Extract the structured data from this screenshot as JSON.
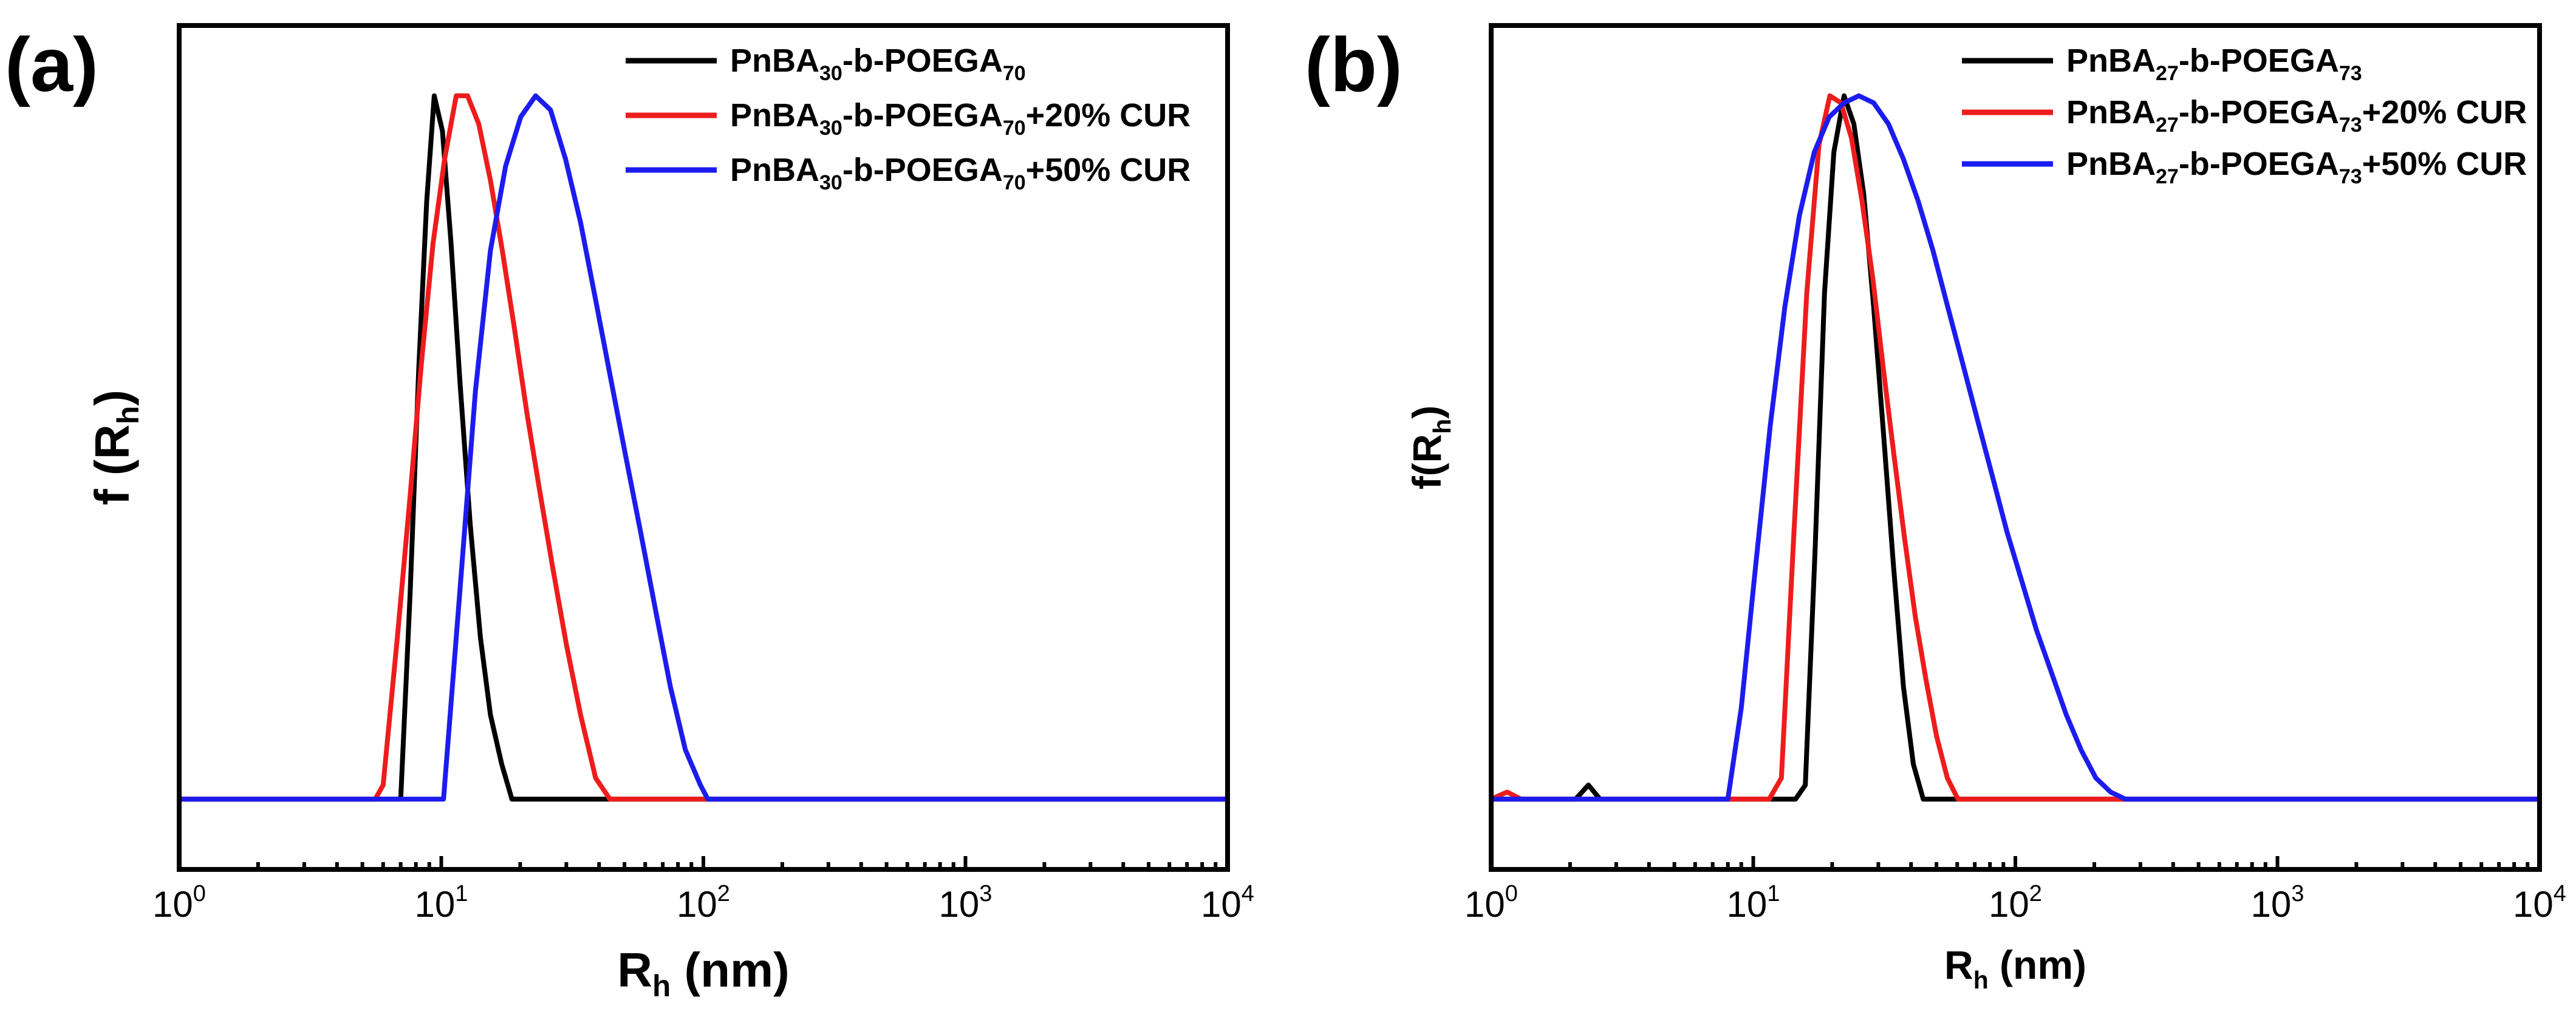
{
  "chart_data": [
    {
      "type": "line",
      "panel_label": "(a)",
      "xscale": "log",
      "xlim": [
        1,
        10000
      ],
      "ylim": [
        -0.1,
        1.1
      ],
      "x_ticks": [
        {
          "base": "10",
          "exp": "0",
          "value": 1
        },
        {
          "base": "10",
          "exp": "1",
          "value": 10
        },
        {
          "base": "10",
          "exp": "2",
          "value": 100
        },
        {
          "base": "10",
          "exp": "3",
          "value": 1000
        },
        {
          "base": "10",
          "exp": "4",
          "value": 10000
        }
      ],
      "xlabel": {
        "main": "R",
        "sub": "h",
        "tail": " (nm)"
      },
      "ylabel": {
        "main": "f (R",
        "sub": "h",
        "tail": ")"
      },
      "legend_position": "top-right",
      "series": [
        {
          "name": "PnBA30-b-POEGA70",
          "label_parts": [
            [
              "PnBA",
              false
            ],
            [
              "30",
              true
            ],
            [
              "-b-POEGA",
              false
            ],
            [
              "70",
              true
            ]
          ],
          "color": "#000000",
          "x": [
            1,
            7,
            7.6,
            8.2,
            8.8,
            9.4,
            10.1,
            10.9,
            11.8,
            12.9,
            14.1,
            15.4,
            17,
            18.6,
            20,
            10000
          ],
          "y": [
            0,
            0,
            0.29,
            0.61,
            0.85,
            1.0,
            0.95,
            0.79,
            0.59,
            0.39,
            0.23,
            0.12,
            0.05,
            0.0,
            0,
            0
          ]
        },
        {
          "name": "PnBA30-b-POEGA70+20% CUR",
          "label_parts": [
            [
              "PnBA",
              false
            ],
            [
              "30",
              true
            ],
            [
              "-b-POEGA",
              false
            ],
            [
              "70",
              true
            ],
            [
              "+20% CUR",
              false
            ]
          ],
          "color": "#ee1c1c",
          "x": [
            1,
            5.6,
            6,
            6.8,
            7.6,
            8.4,
            9.3,
            10.3,
            11.4,
            12.6,
            13.9,
            15.4,
            17.1,
            19,
            21.2,
            23.7,
            26.6,
            30,
            34,
            38.8,
            44,
            10000
          ],
          "y": [
            0,
            0,
            0.02,
            0.23,
            0.43,
            0.62,
            0.79,
            0.91,
            1.0,
            1.0,
            0.96,
            0.88,
            0.78,
            0.67,
            0.55,
            0.44,
            0.33,
            0.22,
            0.12,
            0.03,
            0,
            0
          ]
        },
        {
          "name": "PnBA30-b-POEGA70+50% CUR",
          "label_parts": [
            [
              "PnBA",
              false
            ],
            [
              "30",
              true
            ],
            [
              "-b-POEGA",
              false
            ],
            [
              "70",
              true
            ],
            [
              "+50% CUR",
              false
            ]
          ],
          "color": "#1c1cee",
          "x": [
            1,
            10.2,
            11.8,
            13.5,
            15.4,
            17.6,
            20.1,
            22.9,
            26.1,
            29.8,
            34,
            38.8,
            44.2,
            50.4,
            57.6,
            65.6,
            74.8,
            85.4,
            97.4,
            104,
            10000
          ],
          "y": [
            0,
            0,
            0.3,
            0.58,
            0.78,
            0.9,
            0.97,
            1.0,
            0.98,
            0.91,
            0.82,
            0.71,
            0.6,
            0.49,
            0.38,
            0.27,
            0.16,
            0.07,
            0.02,
            0,
            0
          ]
        }
      ]
    },
    {
      "type": "line",
      "panel_label": "(b)",
      "xscale": "log",
      "xlim": [
        1,
        10000
      ],
      "ylim": [
        -0.1,
        1.1
      ],
      "x_ticks": [
        {
          "base": "10",
          "exp": "0",
          "value": 1
        },
        {
          "base": "10",
          "exp": "1",
          "value": 10
        },
        {
          "base": "10",
          "exp": "2",
          "value": 100
        },
        {
          "base": "10",
          "exp": "3",
          "value": 1000
        },
        {
          "base": "10",
          "exp": "4",
          "value": 10000
        }
      ],
      "xlabel": {
        "main": "R",
        "sub": "h",
        "tail": " (nm)"
      },
      "ylabel": {
        "main": "f(R",
        "sub": "h",
        "tail": ")"
      },
      "legend_position": "top-right",
      "series": [
        {
          "name": "PnBA27-b-POEGA73",
          "label_parts": [
            [
              "PnBA",
              false
            ],
            [
              "27",
              true
            ],
            [
              "-b-POEGA",
              false
            ],
            [
              "73",
              true
            ]
          ],
          "color": "#000000",
          "x": [
            1,
            2.1,
            2.35,
            2.6,
            14.5,
            15.8,
            17.2,
            18.7,
            20.3,
            22.2,
            24.2,
            26.4,
            28.8,
            31.4,
            34.3,
            37.4,
            40.8,
            44.5,
            46,
            10000
          ],
          "y": [
            0,
            0,
            0.02,
            0,
            0,
            0.02,
            0.35,
            0.72,
            0.92,
            1.0,
            0.96,
            0.86,
            0.7,
            0.52,
            0.33,
            0.16,
            0.05,
            0.0,
            0,
            0
          ]
        },
        {
          "name": "PnBA27-b-POEGA73+20% CUR",
          "label_parts": [
            [
              "PnBA",
              false
            ],
            [
              "27",
              true
            ],
            [
              "-b-POEGA",
              false
            ],
            [
              "73",
              true
            ],
            [
              "+20% CUR",
              false
            ]
          ],
          "color": "#ee1c1c",
          "x": [
            1,
            1.15,
            1.3,
            11.5,
            12.8,
            14.3,
            16,
            17.8,
            19.6,
            21.6,
            23.7,
            26,
            28.6,
            31.4,
            34.4,
            37.8,
            41.5,
            45.6,
            50,
            55,
            60.4,
            64,
            10000
          ],
          "y": [
            0,
            0.01,
            0,
            0,
            0.03,
            0.38,
            0.72,
            0.93,
            1.0,
            0.99,
            0.94,
            0.85,
            0.74,
            0.61,
            0.49,
            0.37,
            0.26,
            0.17,
            0.09,
            0.03,
            0.0,
            0,
            0
          ]
        },
        {
          "name": "PnBA27-b-POEGA73+50% CUR",
          "label_parts": [
            [
              "PnBA",
              false
            ],
            [
              "27",
              true
            ],
            [
              "-b-POEGA",
              false
            ],
            [
              "73",
              true
            ],
            [
              "+50% CUR",
              false
            ]
          ],
          "color": "#1c1cee",
          "x": [
            1,
            8,
            9,
            10.2,
            11.6,
            13.2,
            15,
            17.1,
            19.5,
            22.2,
            25.3,
            28.8,
            32.8,
            37.4,
            42.6,
            48.5,
            55.2,
            62.9,
            71.6,
            81.6,
            92.9,
            105.8,
            120.5,
            137.3,
            156.4,
            178.1,
            202.8,
            231,
            263,
            300,
            10000
          ],
          "y": [
            0,
            0,
            0.13,
            0.33,
            0.53,
            0.7,
            0.83,
            0.92,
            0.97,
            0.99,
            1.0,
            0.99,
            0.96,
            0.91,
            0.85,
            0.78,
            0.7,
            0.62,
            0.54,
            0.46,
            0.38,
            0.31,
            0.24,
            0.18,
            0.12,
            0.07,
            0.03,
            0.01,
            0.0,
            0,
            0
          ]
        }
      ]
    }
  ]
}
